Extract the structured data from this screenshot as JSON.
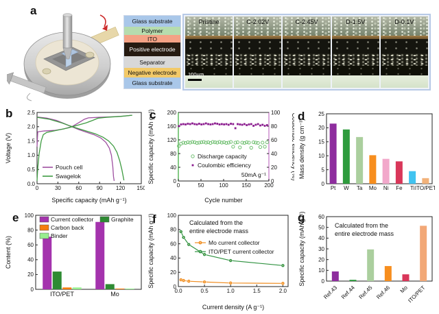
{
  "panel_labels": {
    "a": "a",
    "b": "b",
    "c": "c",
    "d": "d",
    "e": "e",
    "f": "f",
    "g": "g"
  },
  "panel_a": {
    "stack_layers": [
      {
        "name": "Glass substrate",
        "bg": "#a9c7e9",
        "fg": "#111",
        "h": 16,
        "tex": ""
      },
      {
        "name": "Polymer",
        "bg": "#b6dcae",
        "fg": "#111",
        "h": 12,
        "tex": ""
      },
      {
        "name": "ITO",
        "bg": "#f4a285",
        "fg": "#111",
        "h": 11,
        "tex": ""
      },
      {
        "name": "Positive electrode",
        "bg": "#261b11",
        "fg": "#ffffff",
        "h": 20,
        "tex": "tex-dark"
      },
      {
        "name": "Separator",
        "bg": "#d8d8d8",
        "fg": "#111",
        "h": 17,
        "tex": "tex-stripes"
      },
      {
        "name": "Negative electrode",
        "bg": "#f2c968",
        "fg": "#111",
        "h": 14,
        "tex": ""
      },
      {
        "name": "Glass substrate",
        "bg": "#a9c7e9",
        "fg": "#111",
        "h": 16,
        "tex": ""
      }
    ],
    "micrographs": [
      "Pristine",
      "C-2.02V",
      "C-2.45V",
      "D-1.5V",
      "D-0.1V"
    ],
    "scale_bar": "100µm"
  },
  "chart_data": [
    {
      "id": "b",
      "type": "line",
      "size": [
        205,
        142
      ],
      "plot": [
        48,
        8,
        200,
        112
      ],
      "xlabel": "Specific capacity (mAh g⁻¹)",
      "ylabel": "Voltage (V)",
      "xlim": [
        0,
        150
      ],
      "ylim": [
        0,
        2.5
      ],
      "xticks": [
        0,
        30,
        60,
        90,
        120,
        150
      ],
      "yticks": [
        0,
        0.5,
        1,
        1.5,
        2,
        2.5
      ],
      "yfmt": 1,
      "series": [
        {
          "name": "Pouch cell",
          "color": "#9e4fa0",
          "paths": [
            [
              [
                0,
                1.3
              ],
              [
                1,
                1.82
              ],
              [
                10,
                1.85
              ],
              [
                25,
                1.87
              ],
              [
                38,
                1.92
              ],
              [
                50,
                2.0
              ],
              [
                60,
                2.14
              ],
              [
                68,
                2.26
              ],
              [
                74,
                2.31
              ],
              [
                90,
                2.33
              ],
              [
                110,
                2.35
              ],
              [
                124,
                2.37
              ],
              [
                136,
                2.4
              ]
            ],
            [
              [
                0,
                2.34
              ],
              [
                14,
                2.3
              ],
              [
                28,
                2.22
              ],
              [
                40,
                2.1
              ],
              [
                48,
                2.02
              ],
              [
                60,
                1.9
              ],
              [
                72,
                1.8
              ],
              [
                82,
                1.72
              ],
              [
                92,
                1.6
              ],
              [
                99,
                1.45
              ],
              [
                104,
                1.25
              ],
              [
                107,
                1.0
              ],
              [
                109,
                0.6
              ],
              [
                110,
                0.25
              ],
              [
                111,
                0.1
              ]
            ]
          ]
        },
        {
          "name": "Swagelok",
          "color": "#3e9b41",
          "paths": [
            [
              [
                0,
                0.1
              ],
              [
                1,
                0.55
              ],
              [
                3,
                1.05
              ],
              [
                6,
                1.5
              ],
              [
                9,
                1.72
              ],
              [
                14,
                1.8
              ],
              [
                30,
                1.88
              ],
              [
                45,
                1.96
              ],
              [
                58,
                2.05
              ],
              [
                70,
                2.13
              ],
              [
                80,
                2.22
              ],
              [
                88,
                2.3
              ],
              [
                100,
                2.33
              ],
              [
                120,
                2.36
              ],
              [
                137,
                2.4
              ]
            ],
            [
              [
                0,
                2.33
              ],
              [
                18,
                2.26
              ],
              [
                36,
                2.13
              ],
              [
                47,
                2.03
              ],
              [
                60,
                1.93
              ],
              [
                72,
                1.84
              ],
              [
                84,
                1.75
              ],
              [
                95,
                1.63
              ],
              [
                103,
                1.5
              ],
              [
                110,
                1.32
              ],
              [
                115,
                1.1
              ],
              [
                119,
                0.8
              ],
              [
                122,
                0.5
              ],
              [
                125,
                0.12
              ]
            ]
          ]
        }
      ],
      "legend": {
        "items": [
          {
            "label": "Pouch cell",
            "color": "#9e4fa0",
            "icon": "line",
            "x": 56,
            "y": 88
          },
          {
            "label": "Swagelok",
            "color": "#3e9b41",
            "icon": "line",
            "x": 56,
            "y": 101
          }
        ]
      }
    },
    {
      "id": "c",
      "type": "scatter",
      "size": [
        215,
        142
      ],
      "plot": [
        46,
        8,
        178,
        108
      ],
      "xlabel": "Cycle number",
      "ylabel": "Specific capacity (mAh g⁻¹)",
      "y2label": "Coulombic efficiency (%)",
      "xlim": [
        0,
        200
      ],
      "ylim": [
        0,
        200
      ],
      "y2lim": [
        0,
        100
      ],
      "xticks": [
        0,
        50,
        100,
        150,
        200
      ],
      "yticks": [
        0,
        40,
        80,
        120,
        160,
        200
      ],
      "y2ticks": [
        0,
        20,
        40,
        60,
        80,
        100
      ],
      "spine_left": "#5cb85c",
      "spine_right": "#cf8fd0",
      "series": [
        {
          "name": "Discharge capacity",
          "marker": "circle-open",
          "color": "#6fbf70",
          "axis": "y",
          "x": [
            1,
            6,
            11,
            16,
            21,
            26,
            31,
            36,
            41,
            46,
            51,
            56,
            61,
            66,
            71,
            76,
            81,
            86,
            91,
            96,
            101,
            106,
            111,
            116,
            121,
            126,
            131,
            136,
            141,
            146,
            151,
            156,
            161,
            166,
            171,
            176,
            181,
            186,
            191,
            196
          ],
          "y": [
            102,
            109,
            112,
            111,
            113,
            112,
            114,
            113,
            111,
            112,
            113,
            114,
            112,
            113,
            111,
            114,
            113,
            112,
            114,
            112,
            113,
            111,
            112,
            114,
            100,
            112,
            113,
            98,
            112,
            111,
            113,
            112,
            97,
            113,
            112,
            111,
            99,
            112,
            100,
            113
          ]
        },
        {
          "name": "Coulombic efficiency",
          "marker": "square",
          "color": "#8a1b8e",
          "axis": "y2",
          "x": [
            1,
            6,
            11,
            16,
            21,
            26,
            31,
            36,
            41,
            46,
            51,
            56,
            61,
            66,
            71,
            76,
            81,
            86,
            91,
            96,
            101,
            106,
            111,
            116,
            121,
            126,
            131,
            136,
            141,
            146,
            151,
            156,
            161,
            166,
            171,
            176,
            181,
            186,
            191,
            196
          ],
          "y": [
            80,
            82.5,
            83,
            82.5,
            83.5,
            83,
            84,
            83,
            82.5,
            83.5,
            82.5,
            83,
            84,
            83,
            82.5,
            83,
            84,
            83.5,
            82.5,
            83,
            82.5,
            83,
            82,
            83.5,
            83,
            77,
            83,
            82.5,
            82,
            83,
            81.5,
            82.5,
            83,
            80.5,
            82,
            83,
            81,
            82,
            80.5,
            81.5
          ]
        }
      ],
      "legend": {
        "items": [
          {
            "label": "Discharge capacity",
            "color": "#6fbf70",
            "icon": "circle-open",
            "x": 62,
            "y": 72
          },
          {
            "label": "Coulombic efficiency",
            "color": "#8a1b8e",
            "icon": "square",
            "x": 62,
            "y": 85
          }
        ]
      },
      "annotations": [
        {
          "text": "50mA g⁻¹",
          "x": 174,
          "y": 102,
          "anchor": "end",
          "size": 8.5
        }
      ]
    },
    {
      "id": "d",
      "type": "bar",
      "size": [
        200,
        142
      ],
      "plot": [
        42,
        10,
        196,
        112
      ],
      "ylabel": "Mass density (g cm⁻³)",
      "ylim": [
        0,
        25
      ],
      "yticks": [
        0,
        5,
        10,
        15,
        20,
        25
      ],
      "categories": [
        "Pt",
        "W",
        "Ta",
        "Mo",
        "Ni",
        "Fe",
        "Ti",
        "ITO/PET"
      ],
      "values": [
        21.5,
        19.4,
        16.7,
        10.2,
        8.9,
        8.0,
        4.5,
        2.0
      ],
      "colors": [
        "#8e2d9e",
        "#2e9b3d",
        "#abcf9e",
        "#f78e1e",
        "#f2a8cb",
        "#d9375a",
        "#41c3f0",
        "#f2b27a"
      ]
    },
    {
      "id": "e",
      "type": "grouped-bar",
      "size": [
        205,
        148
      ],
      "plot": [
        46,
        8,
        200,
        116
      ],
      "ylabel": "Content (%)",
      "ylim": [
        0,
        100
      ],
      "yticks": [
        0,
        20,
        40,
        60,
        80,
        100
      ],
      "groups": [
        "ITO/PET",
        "Mo"
      ],
      "series": [
        {
          "name": "Current collector",
          "color": "#a433ad",
          "values": [
            71,
            91
          ]
        },
        {
          "name": "Graphite",
          "color": "#2e8b33",
          "values": [
            24,
            7
          ]
        },
        {
          "name": "Carbon back",
          "color": "#f57d0e",
          "values": [
            2.5,
            1
          ]
        },
        {
          "name": "Binder",
          "color": "#97ee8f",
          "values": [
            2.5,
            1
          ]
        }
      ],
      "legend": {
        "items": [
          {
            "label": "Current collector",
            "color": "#a433ad",
            "icon": "rect",
            "x": 52,
            "y": 17
          },
          {
            "label": "Carbon back",
            "color": "#f57d0e",
            "icon": "rect",
            "x": 52,
            "y": 29
          },
          {
            "label": "Binder",
            "color": "#97ee8f",
            "icon": "rect",
            "x": 52,
            "y": 41
          },
          {
            "label": "Graphite",
            "color": "#2e8b33",
            "icon": "rect",
            "x": 140,
            "y": 17
          }
        ]
      }
    },
    {
      "id": "f",
      "type": "line-marker",
      "size": [
        215,
        148
      ],
      "plot": [
        46,
        8,
        206,
        112
      ],
      "xlabel": "Current density (A g⁻¹)",
      "ylabel": "Specific capacity (mAh g⁻¹)",
      "xlim": [
        0,
        2.1
      ],
      "ylim": [
        0,
        100
      ],
      "xticks": [
        0,
        0.5,
        1,
        1.5,
        2
      ],
      "xfmt": 1,
      "yticks": [
        0,
        20,
        40,
        60,
        80,
        100
      ],
      "series": [
        {
          "name": "Mo current collector",
          "color": "#f08c1e",
          "x": [
            0.05,
            0.1,
            0.2,
            0.5,
            1,
            2
          ],
          "y": [
            9.5,
            8.5,
            7.5,
            6.5,
            5,
            4.5
          ]
        },
        {
          "name": "ITO/PET current collector",
          "color": "#2f9240",
          "x": [
            0.05,
            0.1,
            0.2,
            0.5,
            1,
            2
          ],
          "y": [
            77,
            69,
            59,
            45,
            36.5,
            29.5
          ]
        }
      ],
      "legend": {
        "items": [
          {
            "label": "Mo current collector",
            "color": "#f08c1e",
            "icon": "line-dot",
            "x": 70,
            "y": 48
          },
          {
            "label": "ITO/PET current collector",
            "color": "#2f9240",
            "icon": "line-dot",
            "x": 70,
            "y": 61
          }
        ]
      },
      "annotations": [
        {
          "text": "Calculated from the",
          "x": 62,
          "y": 22,
          "anchor": "start",
          "size": 9
        },
        {
          "text": "entire electrode mass",
          "x": 62,
          "y": 34,
          "anchor": "start",
          "size": 9
        }
      ]
    },
    {
      "id": "g",
      "type": "bar",
      "size": [
        200,
        148
      ],
      "plot": [
        42,
        10,
        196,
        104
      ],
      "ylabel": "Specific capacity (mAh g⁻¹)",
      "ylim": [
        0,
        60
      ],
      "yticks": [
        0,
        10,
        20,
        30,
        40,
        50,
        60
      ],
      "categories": [
        "Ref.43",
        "Ref.44",
        "Ref.45",
        "Ref.46",
        "Mo",
        "ITO/PET"
      ],
      "values": [
        9,
        1.2,
        29.5,
        14,
        6.3,
        51.5
      ],
      "colors": [
        "#8e2d9e",
        "#2e9b3d",
        "#abcf9e",
        "#f78e1e",
        "#d9375a",
        "#f2a877"
      ],
      "rotate_labels": -45,
      "annotations": [
        {
          "text": "Calculated from the",
          "x": 54,
          "y": 26,
          "anchor": "start",
          "size": 9
        },
        {
          "text": "entire electrode mass",
          "x": 54,
          "y": 38,
          "anchor": "start",
          "size": 9
        }
      ]
    }
  ]
}
